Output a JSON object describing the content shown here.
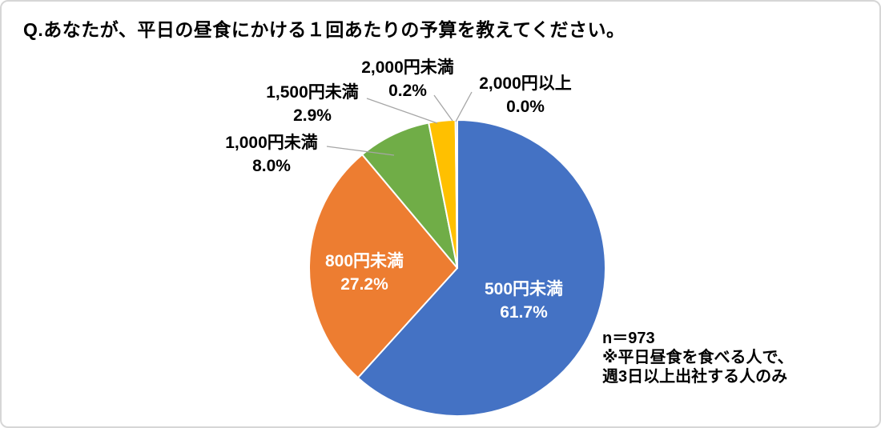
{
  "chart_data": {
    "type": "pie",
    "title": "Q.あなたが、平日の昼食にかける１回あたりの予算を教えてください。",
    "categories": [
      "500円未満",
      "800円未満",
      "1,000円未満",
      "1,500円未満",
      "2,000円未満",
      "2,000円以上"
    ],
    "values": [
      61.7,
      27.2,
      8.0,
      2.9,
      0.2,
      0.0
    ],
    "colors": [
      "#4472C4",
      "#ED7D31",
      "#70AD47",
      "#FFC000",
      "#5B9BD5",
      null
    ],
    "slice_border_color": "#FFFFFF",
    "leader_line_color": "#A6A6A6",
    "start_angle": "top",
    "direction": "clockwise",
    "inside_label_count": 2,
    "annotations": [
      "n＝973",
      "※平日昼食を食べる人で、",
      "週3日以上出社する人のみ"
    ]
  }
}
